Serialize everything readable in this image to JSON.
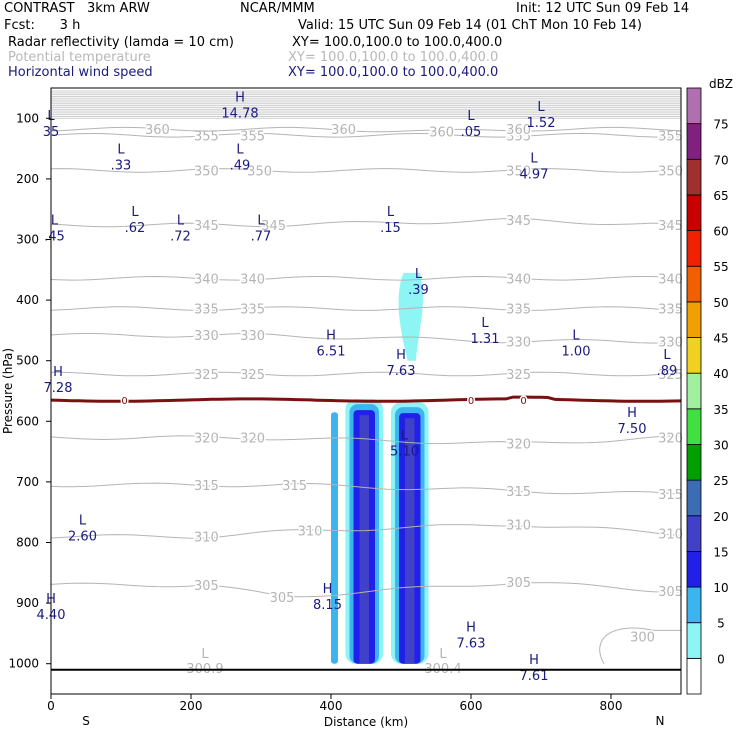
{
  "header": {
    "model": "CONTRAST   3km ARW",
    "center": "NCAR/MMM",
    "init": "Init: 12 UTC Sun 09 Feb 14",
    "fcst": "Fcst:      3 h",
    "valid": "Valid: 15 UTC Sun 09 Feb 14 (01 ChT Mon 10 Feb 14)",
    "field1": "Radar reflectivity (lamda = 10 cm)",
    "field1_xy": "XY= 100.0,100.0 to 100.0,400.0",
    "field2": "Potential temperature",
    "field2_xy": "XY= 100.0,100.0 to 100.0,400.0",
    "field3": "Horizontal wind speed",
    "field3_xy": "XY= 100.0,100.0 to 100.0,400.0"
  },
  "colors": {
    "theta": "#b4b4b4",
    "wind_label": "#1a1a80",
    "freezing": "#7a1010",
    "refl_5": "#8ef5f5",
    "refl_10": "#3cb4f0",
    "refl_15": "#2020e8",
    "refl_20": "#4040c8",
    "refl_25": "#3c6cb4"
  },
  "chart_data": {
    "type": "heatmap",
    "title": "Radar reflectivity (lamda = 10 cm)",
    "xlabel": "Distance (km)",
    "ylabel": "Pressure (hPa)",
    "xlim": [
      0,
      900
    ],
    "ylim": [
      1050,
      50
    ],
    "x_ticks": [
      0,
      200,
      400,
      600,
      800
    ],
    "y_ticks": [
      100,
      200,
      300,
      400,
      500,
      600,
      700,
      800,
      900,
      1000
    ],
    "x_end_labels": {
      "left": "S",
      "right": "N"
    },
    "colorbar": {
      "unit": "dBZ",
      "levels": [
        0,
        5,
        10,
        15,
        20,
        25,
        30,
        35,
        40,
        45,
        50,
        55,
        60,
        65,
        70,
        75
      ],
      "colors": [
        "#ffffff",
        "#8ef5f5",
        "#3cb4f0",
        "#2020e8",
        "#4040c8",
        "#3c6cb4",
        "#00a000",
        "#40e040",
        "#a0f0a0",
        "#f0d020",
        "#f0a000",
        "#f06000",
        "#f02000",
        "#c80000",
        "#a03030",
        "#802080",
        "#b070b0"
      ]
    },
    "reflectivity_cells": [
      {
        "x": [
          400,
          410
        ],
        "p_top": 585,
        "p_bottom": 1000,
        "max_dbz": 10
      },
      {
        "x": [
          425,
          470
        ],
        "p_top": 570,
        "p_bottom": 1000,
        "max_dbz": 20
      },
      {
        "x": [
          490,
          535
        ],
        "p_top": 575,
        "p_bottom": 1000,
        "max_dbz": 20
      },
      {
        "x": [
          495,
          530
        ],
        "p_top": 355,
        "p_bottom": 500,
        "max_dbz": 5
      }
    ],
    "theta_contours": [
      {
        "level": 300,
        "labels": [
          {
            "x": 845,
            "p": 955,
            "text": "300"
          }
        ]
      },
      {
        "level": 305,
        "labels": [
          {
            "x": 222,
            "p": 870,
            "text": "305"
          },
          {
            "x": 330,
            "p": 890,
            "text": "305"
          },
          {
            "x": 668,
            "p": 865,
            "text": "305"
          },
          {
            "x": 885,
            "p": 880,
            "text": "305"
          }
        ]
      },
      {
        "level": 310,
        "labels": [
          {
            "x": 222,
            "p": 790,
            "text": "310"
          },
          {
            "x": 370,
            "p": 780,
            "text": "310"
          },
          {
            "x": 668,
            "p": 770,
            "text": "310"
          },
          {
            "x": 885,
            "p": 785,
            "text": "310"
          }
        ]
      },
      {
        "level": 315,
        "labels": [
          {
            "x": 222,
            "p": 705,
            "text": "315"
          },
          {
            "x": 348,
            "p": 705,
            "text": "315"
          },
          {
            "x": 668,
            "p": 715,
            "text": "315"
          },
          {
            "x": 885,
            "p": 720,
            "text": "315"
          }
        ]
      },
      {
        "level": 320,
        "labels": [
          {
            "x": 222,
            "p": 627,
            "text": "320"
          },
          {
            "x": 288,
            "p": 627,
            "text": "320"
          },
          {
            "x": 668,
            "p": 637,
            "text": "320"
          },
          {
            "x": 885,
            "p": 627,
            "text": "320"
          }
        ]
      },
      {
        "level": 325,
        "labels": [
          {
            "x": 222,
            "p": 522,
            "text": "325"
          },
          {
            "x": 288,
            "p": 522,
            "text": "325"
          },
          {
            "x": 668,
            "p": 522,
            "text": "325"
          },
          {
            "x": 885,
            "p": 522,
            "text": "325"
          }
        ]
      },
      {
        "level": 330,
        "labels": [
          {
            "x": 222,
            "p": 458,
            "text": "330"
          },
          {
            "x": 288,
            "p": 458,
            "text": "330"
          },
          {
            "x": 668,
            "p": 468,
            "text": "330"
          },
          {
            "x": 885,
            "p": 468,
            "text": "330"
          }
        ]
      },
      {
        "level": 335,
        "labels": [
          {
            "x": 222,
            "p": 414,
            "text": "335"
          },
          {
            "x": 288,
            "p": 414,
            "text": "335"
          },
          {
            "x": 668,
            "p": 414,
            "text": "335"
          },
          {
            "x": 885,
            "p": 414,
            "text": "335"
          }
        ]
      },
      {
        "level": 340,
        "labels": [
          {
            "x": 222,
            "p": 364,
            "text": "340"
          },
          {
            "x": 288,
            "p": 364,
            "text": "340"
          },
          {
            "x": 668,
            "p": 364,
            "text": "340"
          },
          {
            "x": 885,
            "p": 364,
            "text": "340"
          }
        ]
      },
      {
        "level": 345,
        "labels": [
          {
            "x": 222,
            "p": 276,
            "text": "345"
          },
          {
            "x": 318,
            "p": 276,
            "text": "345"
          },
          {
            "x": 668,
            "p": 268,
            "text": "345"
          },
          {
            "x": 885,
            "p": 276,
            "text": "345"
          }
        ]
      },
      {
        "level": 350,
        "labels": [
          {
            "x": 222,
            "p": 186,
            "text": "350"
          },
          {
            "x": 298,
            "p": 186,
            "text": "350"
          },
          {
            "x": 668,
            "p": 186,
            "text": "350"
          },
          {
            "x": 885,
            "p": 186,
            "text": "350"
          }
        ]
      },
      {
        "level": 355,
        "labels": [
          {
            "x": 222,
            "p": 128,
            "text": "355"
          },
          {
            "x": 288,
            "p": 128,
            "text": "355"
          },
          {
            "x": 668,
            "p": 128,
            "text": "355"
          },
          {
            "x": 885,
            "p": 128,
            "text": "355"
          }
        ]
      },
      {
        "level": 360,
        "labels": [
          {
            "x": 152,
            "p": 118,
            "text": "360"
          },
          {
            "x": 418,
            "p": 118,
            "text": "360"
          },
          {
            "x": 558,
            "p": 122,
            "text": "360"
          },
          {
            "x": 668,
            "p": 118,
            "text": "360"
          }
        ]
      }
    ],
    "freezing_level": {
      "p": 565,
      "labels": [
        {
          "x": 105,
          "text": "0"
        },
        {
          "x": 600,
          "text": "0"
        },
        {
          "x": 675,
          "text": "0"
        }
      ]
    },
    "wind_extrema": [
      {
        "type": "H",
        "value": "14.78",
        "x": 270,
        "p": 87
      },
      {
        "type": "L",
        "value": "35",
        "x": 0,
        "p": 118
      },
      {
        "type": "L",
        "value": ".05",
        "x": 600,
        "p": 118
      },
      {
        "type": "L",
        "value": "1.52",
        "x": 700,
        "p": 103
      },
      {
        "type": "L",
        "value": ".33",
        "x": 100,
        "p": 173
      },
      {
        "type": "L",
        "value": ".49",
        "x": 270,
        "p": 173
      },
      {
        "type": "L",
        "value": "4.97",
        "x": 690,
        "p": 188
      },
      {
        "type": "L",
        "value": ".45",
        "x": 5,
        "p": 290
      },
      {
        "type": "L",
        "value": ".62",
        "x": 120,
        "p": 276
      },
      {
        "type": "L",
        "value": ".72",
        "x": 185,
        "p": 290
      },
      {
        "type": "L",
        "value": ".77",
        "x": 300,
        "p": 290
      },
      {
        "type": "L",
        "value": ".15",
        "x": 485,
        "p": 276
      },
      {
        "type": "L",
        "value": ".39",
        "x": 525,
        "p": 378
      },
      {
        "type": "L",
        "value": "1.31",
        "x": 620,
        "p": 459
      },
      {
        "type": "H",
        "value": "6.51",
        "x": 400,
        "p": 480
      },
      {
        "type": "L",
        "value": "1.00",
        "x": 750,
        "p": 480
      },
      {
        "type": "L",
        "value": ".89",
        "x": 880,
        "p": 512
      },
      {
        "type": "H",
        "value": "7.63",
        "x": 500,
        "p": 512
      },
      {
        "type": "H",
        "value": "7.28",
        "x": 10,
        "p": 540
      },
      {
        "type": "H",
        "value": "7.50",
        "x": 830,
        "p": 608
      },
      {
        "type": "L",
        "value": "5.10",
        "x": 505,
        "p": 645
      },
      {
        "type": "L",
        "value": "2.60",
        "x": 45,
        "p": 785
      },
      {
        "type": "H",
        "value": "8.15",
        "x": 395,
        "p": 898
      },
      {
        "type": "H",
        "value": "4.40",
        "x": 0,
        "p": 915
      },
      {
        "type": "H",
        "value": "7.63",
        "x": 600,
        "p": 962
      },
      {
        "type": "H",
        "value": "7.61",
        "x": 690,
        "p": 1015
      }
    ],
    "surface_theta_labels": [
      {
        "type": "L",
        "value": "300.9",
        "x": 220,
        "p": 1010
      },
      {
        "type": "L",
        "value": "300.4",
        "x": 560,
        "p": 1010
      }
    ]
  }
}
